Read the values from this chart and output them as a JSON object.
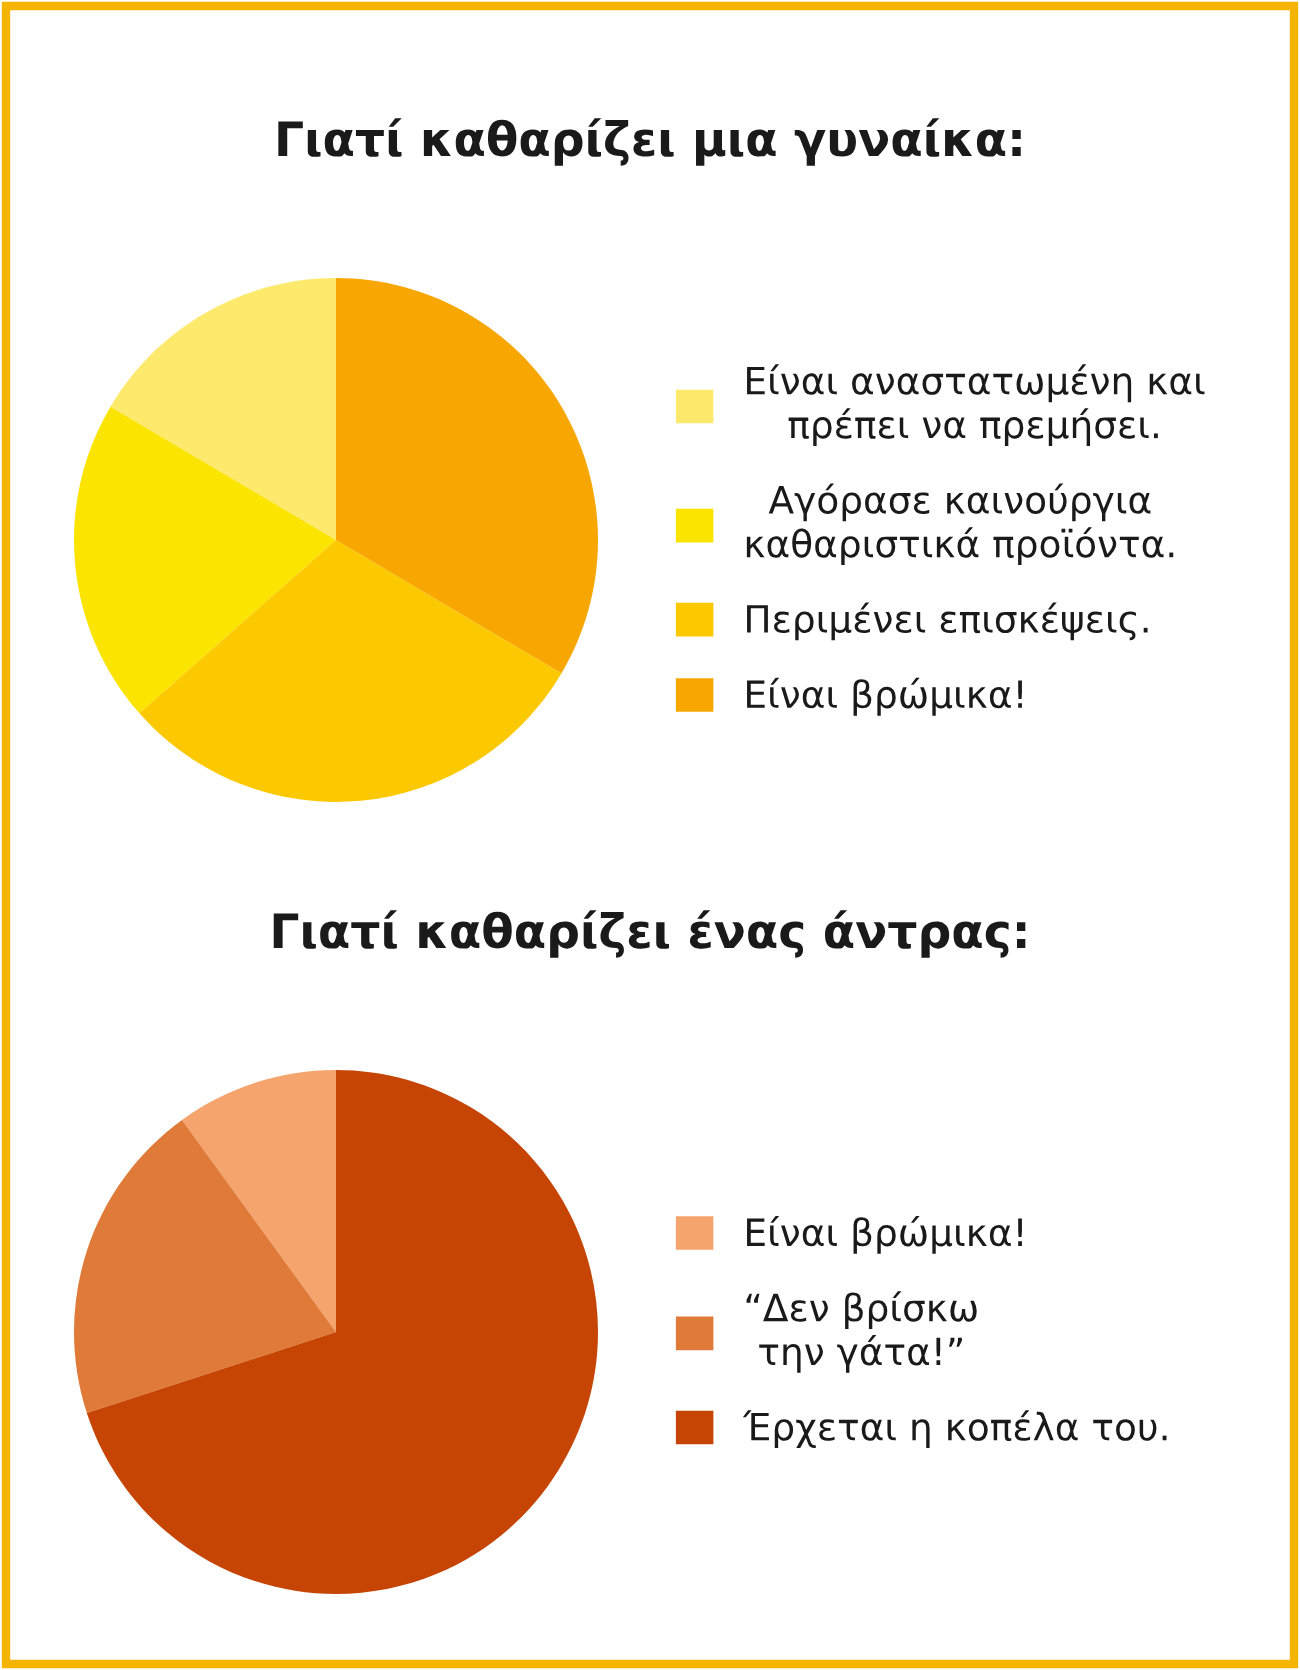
{
  "chart_data": [
    {
      "type": "pie",
      "title": "Γιατί καθαρίζει μια γυναίκα:",
      "categories": [
        "Είναι αναστατωμένη και\nπρέπει να πρεμήσει.",
        "Αγόρασε καινούργια\nκαθαριστικά προϊόντα.",
        "Περιμένει επισκέψεις.",
        "Είναι βρώμικα!"
      ],
      "values": [
        16.5,
        20,
        30,
        33.5
      ],
      "colors": [
        "#fde96b",
        "#fbe400",
        "#fcc900",
        "#f7a700"
      ],
      "legend": "right"
    },
    {
      "type": "pie",
      "title": "Γιατί καθαρίζει ένας άντρας:",
      "categories": [
        "Είναι βρώμικα!",
        "“Δεν βρίσκω\nτην γάτα!”",
        "Έρχεται η κοπέλα του."
      ],
      "values": [
        10,
        20,
        70
      ],
      "colors": [
        "#f4a46c",
        "#e07a38",
        "#c64404"
      ],
      "legend": "right"
    }
  ]
}
